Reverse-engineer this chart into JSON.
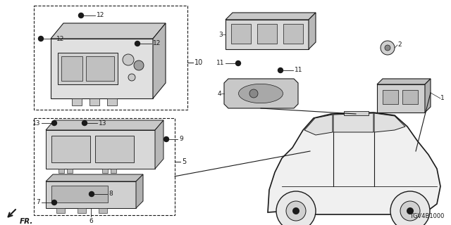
{
  "bg_color": "#ffffff",
  "lc": "#1a1a1a",
  "diagram_code": "TGV4B1000",
  "fig_w": 6.4,
  "fig_h": 3.2,
  "dpi": 100,
  "xlim": [
    0,
    640
  ],
  "ylim": [
    0,
    320
  ]
}
